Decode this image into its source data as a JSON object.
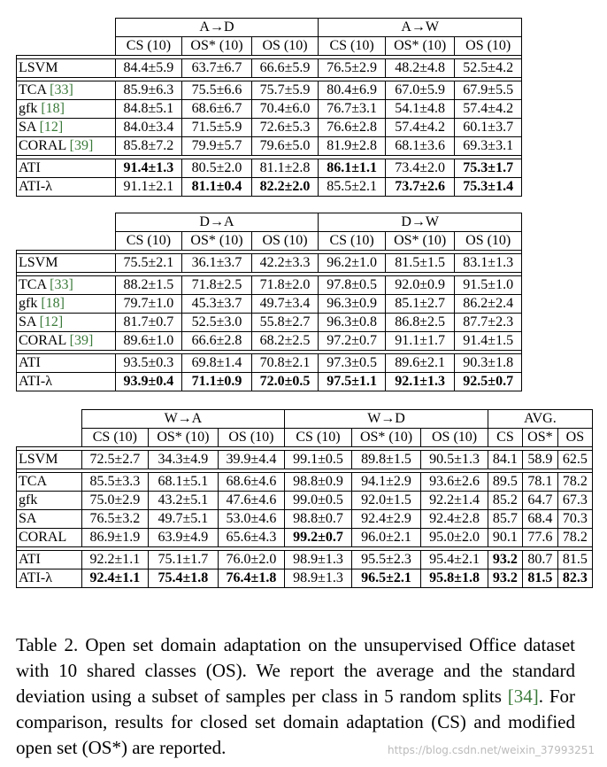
{
  "tables": [
    {
      "groups": [
        {
          "label": "A→D",
          "span": 3
        },
        {
          "label": "A→W",
          "span": 3
        }
      ],
      "headers": [
        "CS (10)",
        "OS* (10)",
        "OS (10)",
        "CS (10)",
        "OS* (10)",
        "OS (10)"
      ],
      "blocks": [
        [
          {
            "method": "LSVM",
            "cite": "",
            "cells": [
              "84.4±5.9",
              "63.7±6.7",
              "66.6±5.9",
              "76.5±2.9",
              "48.2±4.8",
              "52.5±4.2"
            ],
            "bold": []
          }
        ],
        [
          {
            "method": "TCA",
            "cite": "[33]",
            "cells": [
              "85.9±6.3",
              "75.5±6.6",
              "75.7±5.9",
              "80.4±6.9",
              "67.0±5.9",
              "67.9±5.5"
            ],
            "bold": []
          },
          {
            "method": "gfk",
            "cite": "[18]",
            "cells": [
              "84.8±5.1",
              "68.6±6.7",
              "70.4±6.0",
              "76.7±3.1",
              "54.1±4.8",
              "57.4±4.2"
            ],
            "bold": []
          },
          {
            "method": "SA",
            "cite": "[12]",
            "cells": [
              "84.0±3.4",
              "71.5±5.9",
              "72.6±5.3",
              "76.6±2.8",
              "57.4±4.2",
              "60.1±3.7"
            ],
            "bold": []
          },
          {
            "method": "CORAL",
            "cite": "[39]",
            "cells": [
              "85.8±7.2",
              "79.9±5.7",
              "79.6±5.0",
              "81.9±2.8",
              "68.1±3.6",
              "69.3±3.1"
            ],
            "bold": []
          }
        ],
        [
          {
            "method": "ATI",
            "cite": "",
            "cells": [
              "91.4±1.3",
              "80.5±2.0",
              "81.1±2.8",
              "86.1±1.1",
              "73.4±2.0",
              "75.3±1.7"
            ],
            "bold": [
              0,
              3,
              5
            ]
          },
          {
            "method": "ATI-λ",
            "cite": "",
            "cells": [
              "91.1±2.1",
              "81.1±0.4",
              "82.2±2.0",
              "85.5±2.1",
              "73.7±2.6",
              "75.3±1.4"
            ],
            "bold": [
              1,
              2,
              4,
              5
            ]
          }
        ]
      ]
    },
    {
      "groups": [
        {
          "label": "D→A",
          "span": 3
        },
        {
          "label": "D→W",
          "span": 3
        }
      ],
      "headers": [
        "CS (10)",
        "OS* (10)",
        "OS (10)",
        "CS (10)",
        "OS* (10)",
        "OS (10)"
      ],
      "blocks": [
        [
          {
            "method": "LSVM",
            "cite": "",
            "cells": [
              "75.5±2.1",
              "36.1±3.7",
              "42.2±3.3",
              "96.2±1.0",
              "81.5±1.5",
              "83.1±1.3"
            ],
            "bold": []
          }
        ],
        [
          {
            "method": "TCA",
            "cite": "[33]",
            "cells": [
              "88.2±1.5",
              "71.8±2.5",
              "71.8±2.0",
              "97.8±0.5",
              "92.0±0.9",
              "91.5±1.0"
            ],
            "bold": []
          },
          {
            "method": "gfk",
            "cite": "[18]",
            "cells": [
              "79.7±1.0",
              "45.3±3.7",
              "49.7±3.4",
              "96.3±0.9",
              "85.1±2.7",
              "86.2±2.4"
            ],
            "bold": []
          },
          {
            "method": "SA",
            "cite": "[12]",
            "cells": [
              "81.7±0.7",
              "52.5±3.0",
              "55.8±2.7",
              "96.3±0.8",
              "86.8±2.5",
              "87.7±2.3"
            ],
            "bold": []
          },
          {
            "method": "CORAL",
            "cite": "[39]",
            "cells": [
              "89.6±1.0",
              "66.6±2.8",
              "68.2±2.5",
              "97.2±0.7",
              "91.1±1.7",
              "91.4±1.5"
            ],
            "bold": []
          }
        ],
        [
          {
            "method": "ATI",
            "cite": "",
            "cells": [
              "93.5±0.3",
              "69.8±1.4",
              "70.8±2.1",
              "97.3±0.5",
              "89.6±2.1",
              "90.3±1.8"
            ],
            "bold": []
          },
          {
            "method": "ATI-λ",
            "cite": "",
            "cells": [
              "93.9±0.4",
              "71.1±0.9",
              "72.0±0.5",
              "97.5±1.1",
              "92.1±1.3",
              "92.5±0.7"
            ],
            "bold": [
              0,
              1,
              2,
              3,
              4,
              5
            ]
          }
        ]
      ]
    },
    {
      "groups": [
        {
          "label": "W→A",
          "span": 3
        },
        {
          "label": "W→D",
          "span": 3
        },
        {
          "label": "AVG.",
          "span": 3
        }
      ],
      "headers": [
        "CS (10)",
        "OS* (10)",
        "OS (10)",
        "CS (10)",
        "OS* (10)",
        "OS (10)",
        "CS",
        "OS*",
        "OS"
      ],
      "blocks": [
        [
          {
            "method": "LSVM",
            "cite": "",
            "cells": [
              "72.5±2.7",
              "34.3±4.9",
              "39.9±4.4",
              "99.1±0.5",
              "89.8±1.5",
              "90.5±1.3",
              "84.1",
              "58.9",
              "62.5"
            ],
            "bold": []
          }
        ],
        [
          {
            "method": "TCA",
            "cite": "",
            "cells": [
              "85.5±3.3",
              "68.1±5.1",
              "68.6±4.6",
              "98.8±0.9",
              "94.1±2.9",
              "93.6±2.6",
              "89.5",
              "78.1",
              "78.2"
            ],
            "bold": []
          },
          {
            "method": "gfk",
            "cite": "",
            "cells": [
              "75.0±2.9",
              "43.2±5.1",
              "47.6±4.6",
              "99.0±0.5",
              "92.0±1.5",
              "92.2±1.4",
              "85.2",
              "64.7",
              "67.3"
            ],
            "bold": []
          },
          {
            "method": "SA",
            "cite": "",
            "cells": [
              "76.5±3.2",
              "49.7±5.1",
              "53.0±4.6",
              "98.8±0.7",
              "92.4±2.9",
              "92.4±2.8",
              "85.7",
              "68.4",
              "70.3"
            ],
            "bold": []
          },
          {
            "method": "CORAL",
            "cite": "",
            "cells": [
              "86.9±1.9",
              "63.9±4.9",
              "65.6±4.3",
              "99.2±0.7",
              "96.0±2.1",
              "95.0±2.0",
              "90.1",
              "77.6",
              "78.2"
            ],
            "bold": [
              3
            ]
          }
        ],
        [
          {
            "method": "ATI",
            "cite": "",
            "cells": [
              "92.2±1.1",
              "75.1±1.7",
              "76.0±2.0",
              "98.9±1.3",
              "95.5±2.3",
              "95.4±2.1",
              "93.2",
              "80.7",
              "81.5"
            ],
            "bold": [
              6
            ]
          },
          {
            "method": "ATI-λ",
            "cite": "",
            "cells": [
              "92.4±1.1",
              "75.4±1.8",
              "76.4±1.8",
              "98.9±1.3",
              "96.5±2.1",
              "95.8±1.8",
              "93.2",
              "81.5",
              "82.3"
            ],
            "bold": [
              0,
              1,
              2,
              4,
              5,
              6,
              7,
              8
            ]
          }
        ]
      ]
    }
  ],
  "caption": {
    "before_cite": "Table 2. Open set domain adaptation on the unsupervised Office dataset with 10 shared classes (OS). We report the average and the standard deviation using a subset of samples per class in 5 random splits ",
    "cite": "[34]",
    "after_cite": ". For comparison, results for closed set domain adaptation (CS) and modified open set (OS*) are reported."
  },
  "watermark": "https://blog.csdn.net/weixin_37993251"
}
